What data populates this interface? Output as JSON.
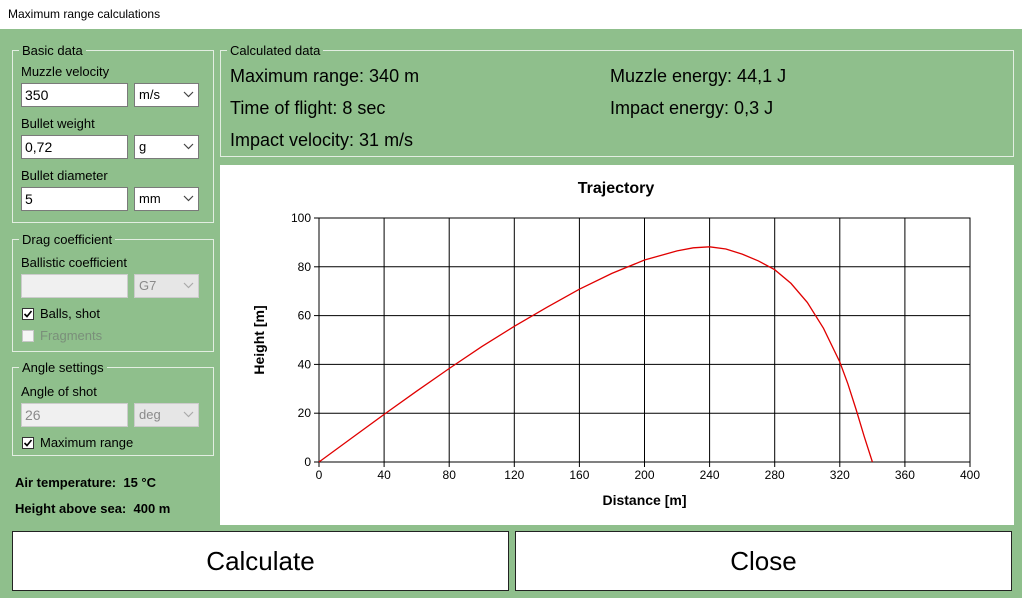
{
  "window": {
    "title": "Maximum range calculations"
  },
  "basic_data": {
    "legend": "Basic data",
    "muzzle_velocity": {
      "label": "Muzzle velocity",
      "value": "350",
      "unit": "m/s"
    },
    "bullet_weight": {
      "label": "Bullet weight",
      "value": "0,72",
      "unit": "g"
    },
    "bullet_diameter": {
      "label": "Bullet diameter",
      "value": "5",
      "unit": "mm"
    }
  },
  "drag": {
    "legend": "Drag coefficient",
    "ballistic_label": "Ballistic coefficient",
    "ballistic_value": "",
    "model": "G7",
    "balls_label": "Balls, shot",
    "balls_checked": true,
    "fragments_label": "Fragments",
    "fragments_checked": false
  },
  "angle": {
    "legend": "Angle settings",
    "label": "Angle of shot",
    "value": "26",
    "unit": "deg",
    "max_range_label": "Maximum range",
    "max_range_checked": true
  },
  "environment": {
    "air_temperature": "Air temperature:  15 °C",
    "height_above_sea": "Height above sea:  400 m"
  },
  "calculated": {
    "legend": "Calculated data",
    "maximum_range": "Maximum range: 340 m",
    "time_of_flight": "Time of flight: 8 sec",
    "impact_velocity": "Impact velocity: 31 m/s",
    "muzzle_energy": "Muzzle energy: 44,1 J",
    "impact_energy": "Impact energy: 0,3 J"
  },
  "chart_data": {
    "type": "line",
    "title": "Trajectory",
    "xlabel": "Distance [m]",
    "ylabel": "Height [m]",
    "xlim": [
      0,
      400
    ],
    "ylim": [
      0,
      100
    ],
    "xticks": [
      0,
      40,
      80,
      120,
      160,
      200,
      240,
      280,
      320,
      360,
      400
    ],
    "yticks": [
      0,
      20,
      40,
      60,
      80,
      100
    ],
    "grid": true,
    "line_color": "#e00000",
    "series": [
      {
        "x": [
          0,
          20,
          40,
          60,
          80,
          100,
          120,
          140,
          160,
          180,
          200,
          220,
          230,
          240,
          250,
          260,
          270,
          280,
          290,
          300,
          310,
          320,
          325,
          330,
          335,
          340
        ],
        "y": [
          0,
          9.8,
          19.5,
          29,
          38.3,
          47.3,
          55.6,
          63.4,
          70.8,
          77.3,
          82.8,
          86.5,
          87.8,
          88.2,
          87.3,
          85.2,
          82.4,
          78.8,
          73.2,
          65.4,
          54.8,
          41,
          32,
          21.5,
          10.5,
          0
        ]
      }
    ]
  },
  "buttons": {
    "calculate": "Calculate",
    "close": "Close"
  }
}
